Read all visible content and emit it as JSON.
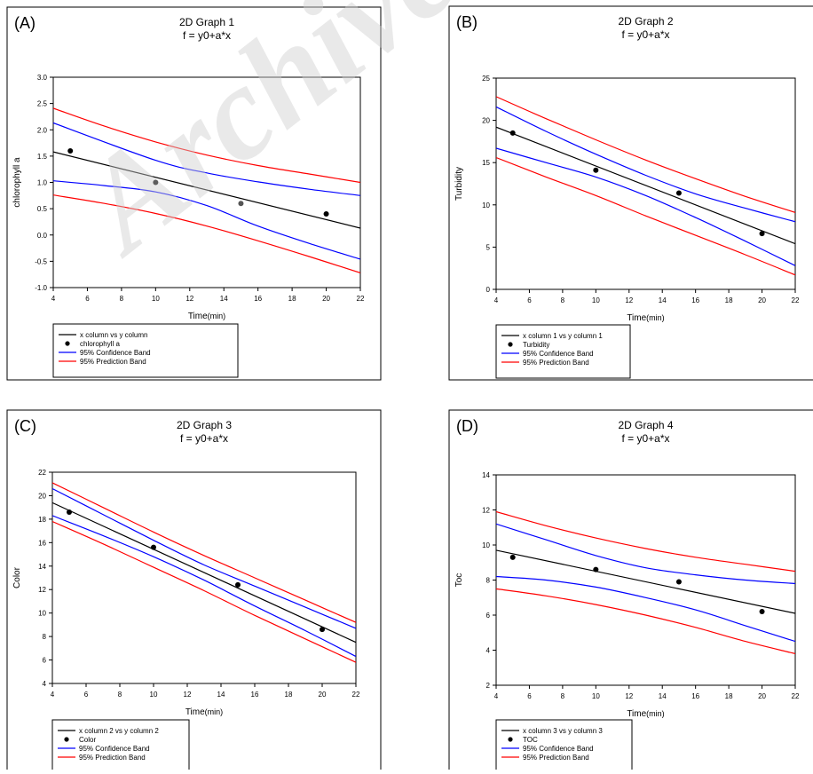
{
  "watermark": "Archive Of",
  "colors": {
    "fit": "#000000",
    "confidence": "#0000ff",
    "prediction": "#ff0000",
    "point": "#000000",
    "point_gray": "#555555"
  },
  "chart_data": [
    {
      "type": "line",
      "panel_label": "(A)",
      "title": "2D Graph 1",
      "subtitle": "f = y0+a*x",
      "xlabel": "Time",
      "xlabel_unit": "(min)",
      "ylabel": "chlorophyll a",
      "xlim": [
        4,
        22
      ],
      "ylim": [
        -1.0,
        3.0
      ],
      "xticks": [
        4,
        6,
        8,
        10,
        12,
        14,
        16,
        18,
        20,
        22
      ],
      "yticks": [
        -1.0,
        -0.5,
        0.0,
        0.5,
        1.0,
        1.5,
        2.0,
        2.5,
        3.0
      ],
      "ytick_decimals": 1,
      "points": [
        [
          5,
          1.6
        ],
        [
          10,
          1.0
        ],
        [
          15,
          0.6
        ],
        [
          20,
          0.4
        ]
      ],
      "fit": [
        [
          4,
          1.58
        ],
        [
          22,
          0.13
        ]
      ],
      "conf_upper": [
        [
          4,
          2.13
        ],
        [
          10,
          1.42
        ],
        [
          13,
          1.18
        ],
        [
          16,
          1.01
        ],
        [
          19,
          0.87
        ],
        [
          22,
          0.75
        ]
      ],
      "conf_lower": [
        [
          4,
          1.03
        ],
        [
          7,
          0.94
        ],
        [
          10,
          0.82
        ],
        [
          13,
          0.56
        ],
        [
          16,
          0.17
        ],
        [
          19,
          -0.16
        ],
        [
          22,
          -0.46
        ]
      ],
      "pred_upper": [
        [
          4,
          2.41
        ],
        [
          7,
          2.07
        ],
        [
          10,
          1.77
        ],
        [
          13,
          1.52
        ],
        [
          16,
          1.32
        ],
        [
          19,
          1.16
        ],
        [
          22,
          1.0
        ]
      ],
      "pred_lower": [
        [
          4,
          0.76
        ],
        [
          7,
          0.6
        ],
        [
          10,
          0.41
        ],
        [
          13,
          0.17
        ],
        [
          16,
          -0.11
        ],
        [
          19,
          -0.41
        ],
        [
          22,
          -0.72
        ]
      ],
      "legend": {
        "fit": "x column vs y column",
        "points": "chlorophyll a",
        "confidence": "95% Confidence Band",
        "prediction": "95% Prediction Band"
      }
    },
    {
      "type": "line",
      "panel_label": "(B)",
      "title": "2D Graph 2",
      "subtitle": "f = y0+a*x",
      "xlabel": "Time",
      "xlabel_unit": "(min)",
      "ylabel": "Turbidity",
      "xlim": [
        4,
        22
      ],
      "ylim": [
        0,
        25
      ],
      "xticks": [
        4,
        6,
        8,
        10,
        12,
        14,
        16,
        18,
        20,
        22
      ],
      "yticks": [
        0,
        5,
        10,
        15,
        20,
        25
      ],
      "ytick_decimals": 0,
      "points": [
        [
          5,
          18.5
        ],
        [
          10,
          14.1
        ],
        [
          15,
          11.4
        ],
        [
          20,
          6.6
        ]
      ],
      "fit": [
        [
          4,
          19.2
        ],
        [
          22,
          5.4
        ]
      ],
      "conf_upper": [
        [
          4,
          21.6
        ],
        [
          7,
          18.7
        ],
        [
          10,
          16.0
        ],
        [
          13,
          13.5
        ],
        [
          16,
          11.3
        ],
        [
          19,
          9.6
        ],
        [
          22,
          8.0
        ]
      ],
      "conf_lower": [
        [
          4,
          16.7
        ],
        [
          7,
          15.0
        ],
        [
          10,
          13.3
        ],
        [
          13,
          11.1
        ],
        [
          16,
          8.5
        ],
        [
          19,
          5.7
        ],
        [
          22,
          2.8
        ]
      ],
      "pred_upper": [
        [
          4,
          22.8
        ],
        [
          7,
          20.2
        ],
        [
          10,
          17.7
        ],
        [
          13,
          15.3
        ],
        [
          16,
          13.1
        ],
        [
          19,
          11.0
        ],
        [
          22,
          9.1
        ]
      ],
      "pred_lower": [
        [
          4,
          15.6
        ],
        [
          7,
          13.3
        ],
        [
          10,
          11.1
        ],
        [
          13,
          8.7
        ],
        [
          16,
          6.4
        ],
        [
          19,
          4.1
        ],
        [
          22,
          1.7
        ]
      ],
      "legend": {
        "fit": "x column 1 vs y column 1",
        "points": "Turbidity",
        "confidence": "95% Confidence Band",
        "prediction": "95% Prediction Band"
      }
    },
    {
      "type": "line",
      "panel_label": "(C)",
      "title": "2D Graph 3",
      "subtitle": "f = y0+a*x",
      "xlabel": "Time",
      "xlabel_unit": "(min)",
      "ylabel": "Color",
      "xlim": [
        4,
        22
      ],
      "ylim": [
        4,
        22
      ],
      "xticks": [
        4,
        6,
        8,
        10,
        12,
        14,
        16,
        18,
        20,
        22
      ],
      "yticks": [
        4,
        6,
        8,
        10,
        12,
        14,
        16,
        18,
        20,
        22
      ],
      "ytick_decimals": 0,
      "points": [
        [
          5,
          18.6
        ],
        [
          10,
          15.6
        ],
        [
          15,
          12.4
        ],
        [
          20,
          8.6
        ]
      ],
      "fit": [
        [
          4,
          19.4
        ],
        [
          22,
          7.5
        ]
      ],
      "conf_upper": [
        [
          4,
          20.6
        ],
        [
          7,
          18.4
        ],
        [
          10,
          16.2
        ],
        [
          13,
          14.1
        ],
        [
          16,
          12.3
        ],
        [
          19,
          10.5
        ],
        [
          22,
          8.7
        ]
      ],
      "conf_lower": [
        [
          4,
          18.3
        ],
        [
          7,
          16.6
        ],
        [
          10,
          14.8
        ],
        [
          13,
          12.8
        ],
        [
          16,
          10.6
        ],
        [
          19,
          8.5
        ],
        [
          22,
          6.3
        ]
      ],
      "pred_upper": [
        [
          4,
          21.1
        ],
        [
          7,
          19.0
        ],
        [
          10,
          16.9
        ],
        [
          13,
          14.9
        ],
        [
          16,
          13.0
        ],
        [
          19,
          11.1
        ],
        [
          22,
          9.2
        ]
      ],
      "pred_lower": [
        [
          4,
          17.8
        ],
        [
          7,
          15.9
        ],
        [
          10,
          13.9
        ],
        [
          13,
          11.9
        ],
        [
          16,
          9.8
        ],
        [
          19,
          7.8
        ],
        [
          22,
          5.8
        ]
      ],
      "legend": {
        "fit": "x column 2 vs y column 2",
        "points": "Color",
        "confidence": "95% Confidence Band",
        "prediction": "95% Prediction Band"
      }
    },
    {
      "type": "line",
      "panel_label": "(D)",
      "title": "2D Graph 4",
      "subtitle": "f = y0+a*x",
      "xlabel": "Time",
      "xlabel_unit": "(min)",
      "ylabel": "Toc",
      "xlim": [
        4,
        22
      ],
      "ylim": [
        2,
        14
      ],
      "xticks": [
        4,
        6,
        8,
        10,
        12,
        14,
        16,
        18,
        20,
        22
      ],
      "yticks": [
        2,
        4,
        6,
        8,
        10,
        12,
        14
      ],
      "ytick_decimals": 0,
      "points": [
        [
          5,
          9.3
        ],
        [
          10,
          8.6
        ],
        [
          15,
          7.9
        ],
        [
          20,
          6.2
        ]
      ],
      "fit": [
        [
          4,
          9.7
        ],
        [
          22,
          6.1
        ]
      ],
      "conf_upper": [
        [
          4,
          11.2
        ],
        [
          7,
          10.3
        ],
        [
          10,
          9.4
        ],
        [
          13,
          8.7
        ],
        [
          16,
          8.3
        ],
        [
          19,
          8.0
        ],
        [
          22,
          7.8
        ]
      ],
      "conf_lower": [
        [
          4,
          8.2
        ],
        [
          7,
          8.0
        ],
        [
          10,
          7.6
        ],
        [
          13,
          7.0
        ],
        [
          16,
          6.3
        ],
        [
          19,
          5.4
        ],
        [
          22,
          4.5
        ]
      ],
      "pred_upper": [
        [
          4,
          11.9
        ],
        [
          7,
          11.1
        ],
        [
          10,
          10.4
        ],
        [
          13,
          9.8
        ],
        [
          16,
          9.3
        ],
        [
          19,
          8.9
        ],
        [
          22,
          8.5
        ]
      ],
      "pred_lower": [
        [
          4,
          7.5
        ],
        [
          7,
          7.1
        ],
        [
          10,
          6.6
        ],
        [
          13,
          6.0
        ],
        [
          16,
          5.3
        ],
        [
          19,
          4.5
        ],
        [
          22,
          3.8
        ]
      ],
      "legend": {
        "fit": "x column 3 vs y column 3",
        "points": "TOC",
        "confidence": "95% Confidence Band",
        "prediction": "95% Prediction Band"
      }
    }
  ]
}
